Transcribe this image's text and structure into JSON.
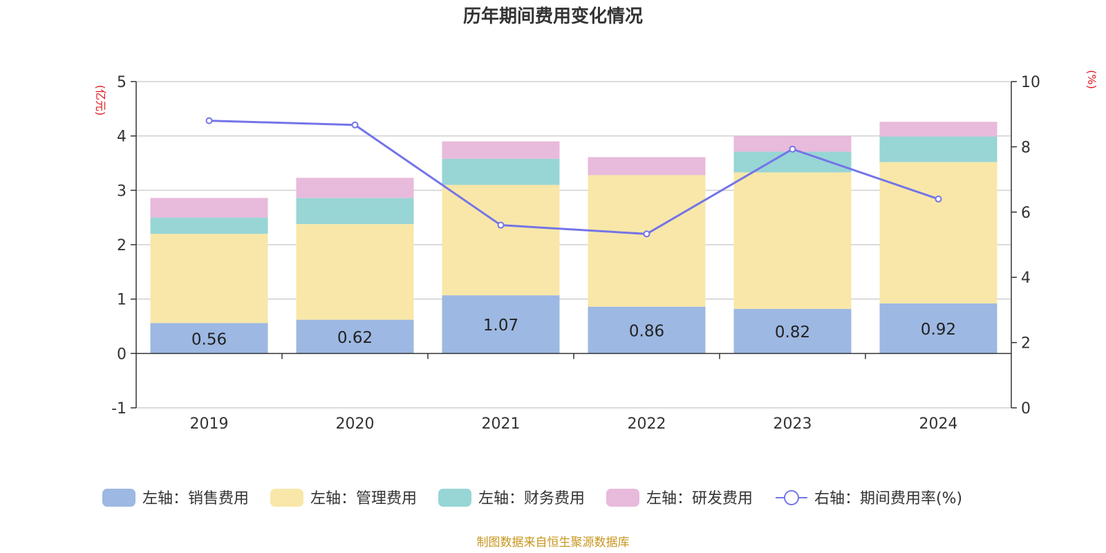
{
  "chart_data": {
    "type": "bar",
    "title": "历年期间费用变化情况",
    "categories": [
      "2019",
      "2020",
      "2021",
      "2022",
      "2023",
      "2024"
    ],
    "stacked": true,
    "left_axis": {
      "unit": "(亿元)",
      "ylim": [
        -1,
        5
      ],
      "ticks": [
        "-1",
        "0",
        "1",
        "2",
        "3",
        "4",
        "5"
      ]
    },
    "right_axis": {
      "unit": "(%)",
      "ylim": [
        0,
        10
      ],
      "ticks": [
        "0",
        "2",
        "4",
        "6",
        "8",
        "10"
      ]
    },
    "series": [
      {
        "name": "左轴：销售费用",
        "axis": "left",
        "color": "#9db8e2",
        "values": [
          0.56,
          0.62,
          1.07,
          0.86,
          0.82,
          0.92
        ],
        "show_labels": true
      },
      {
        "name": "左轴：管理费用",
        "axis": "left",
        "color": "#f8e7a8",
        "values": [
          1.64,
          1.76,
          2.03,
          2.42,
          2.51,
          2.6
        ],
        "show_labels": false
      },
      {
        "name": "左轴：财务费用",
        "axis": "left",
        "color": "#98d5d5",
        "values": [
          0.3,
          0.48,
          0.48,
          0.0,
          0.38,
          0.47
        ],
        "show_labels": false
      },
      {
        "name": "左轴：研发费用",
        "axis": "left",
        "color": "#e8badb",
        "values": [
          0.36,
          0.37,
          0.32,
          0.33,
          0.29,
          0.27
        ],
        "show_labels": false
      },
      {
        "name": "右轴：期间费用率(%)",
        "axis": "right",
        "type": "line",
        "color": "#7474e8",
        "values": [
          8.8,
          8.67,
          5.6,
          5.33,
          7.93,
          6.4
        ]
      }
    ],
    "grid": true,
    "legend_position": "bottom"
  },
  "source": "制图数据来自恒生聚源数据库"
}
